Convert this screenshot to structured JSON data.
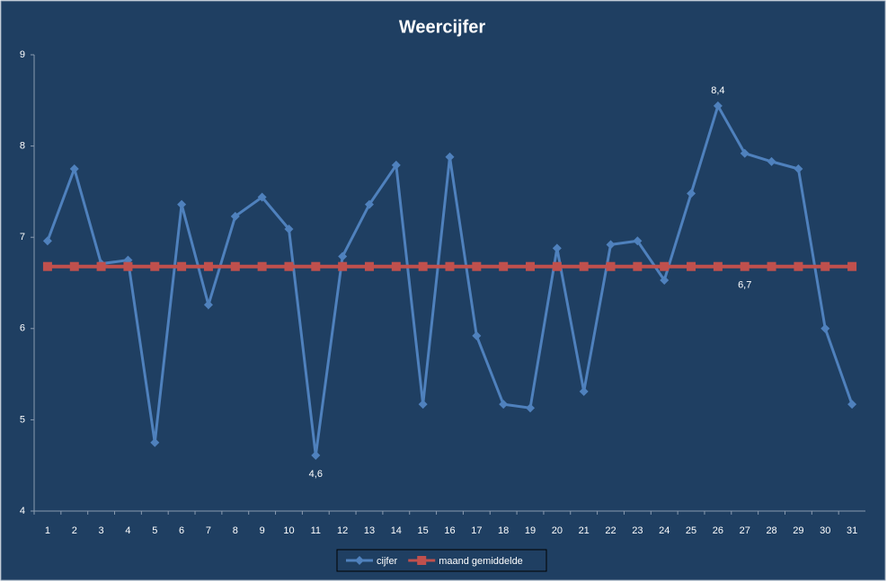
{
  "chart_data": {
    "type": "line",
    "title": "Weercijfer",
    "categories": [
      "1",
      "2",
      "3",
      "4",
      "5",
      "6",
      "7",
      "8",
      "9",
      "10",
      "11",
      "12",
      "13",
      "14",
      "15",
      "16",
      "17",
      "18",
      "19",
      "20",
      "21",
      "22",
      "23",
      "24",
      "25",
      "26",
      "27",
      "28",
      "29",
      "30",
      "31"
    ],
    "series": [
      {
        "name": "cijfer",
        "color": "#4f81bd",
        "marker": "diamond",
        "values": [
          6.96,
          7.75,
          6.71,
          6.75,
          4.75,
          7.36,
          6.26,
          7.23,
          7.44,
          7.09,
          4.61,
          6.79,
          7.36,
          7.79,
          5.17,
          7.88,
          5.92,
          5.17,
          5.13,
          6.88,
          5.31,
          6.92,
          6.96,
          6.53,
          7.48,
          8.44,
          7.92,
          7.83,
          7.75,
          6.0,
          5.17
        ],
        "value_labels": [
          null,
          null,
          null,
          null,
          null,
          null,
          null,
          null,
          null,
          null,
          "4,6",
          null,
          null,
          null,
          null,
          null,
          null,
          null,
          null,
          null,
          null,
          null,
          null,
          null,
          null,
          "8,4",
          null,
          null,
          null,
          null,
          null
        ]
      },
      {
        "name": "maand gemiddelde",
        "color": "#c0504d",
        "marker": "square",
        "values": [
          6.68,
          6.68,
          6.68,
          6.68,
          6.68,
          6.68,
          6.68,
          6.68,
          6.68,
          6.68,
          6.68,
          6.68,
          6.68,
          6.68,
          6.68,
          6.68,
          6.68,
          6.68,
          6.68,
          6.68,
          6.68,
          6.68,
          6.68,
          6.68,
          6.68,
          6.68,
          6.68,
          6.68,
          6.68,
          6.68,
          6.68
        ],
        "value_labels": [
          null,
          null,
          null,
          null,
          null,
          null,
          null,
          null,
          null,
          null,
          null,
          null,
          null,
          null,
          null,
          null,
          null,
          null,
          null,
          null,
          null,
          null,
          null,
          null,
          null,
          null,
          "6,7",
          null,
          null,
          null,
          null
        ]
      }
    ],
    "ylim": [
      4,
      9
    ],
    "yticks": [
      4,
      5,
      6,
      7,
      8,
      9
    ],
    "grid": false,
    "legend": "bottom"
  }
}
